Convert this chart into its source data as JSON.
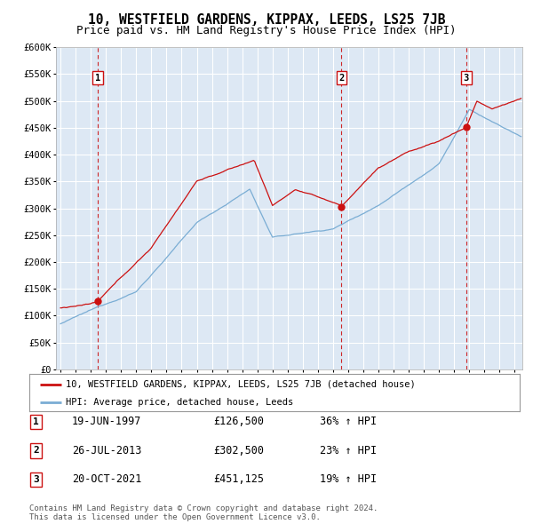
{
  "title": "10, WESTFIELD GARDENS, KIPPAX, LEEDS, LS25 7JB",
  "subtitle": "Price paid vs. HM Land Registry's House Price Index (HPI)",
  "ylim": [
    0,
    600000
  ],
  "yticks": [
    0,
    50000,
    100000,
    150000,
    200000,
    250000,
    300000,
    350000,
    400000,
    450000,
    500000,
    550000,
    600000
  ],
  "ytick_labels": [
    "£0",
    "£50K",
    "£100K",
    "£150K",
    "£200K",
    "£250K",
    "£300K",
    "£350K",
    "£400K",
    "£450K",
    "£500K",
    "£550K",
    "£600K"
  ],
  "xlim_start": 1994.7,
  "xlim_end": 2025.5,
  "background_color": "#dde8f4",
  "grid_color": "#ffffff",
  "sale_color": "#cc1111",
  "hpi_color": "#7aadd4",
  "vline_color": "#cc1111",
  "sales": [
    {
      "year": 1997.47,
      "price": 126500,
      "label": "1",
      "date": "19-JUN-1997",
      "price_str": "£126,500",
      "pct": "36%",
      "direction": "↑"
    },
    {
      "year": 2013.56,
      "price": 302500,
      "label": "2",
      "date": "26-JUL-2013",
      "price_str": "£302,500",
      "pct": "23%",
      "direction": "↑"
    },
    {
      "year": 2021.8,
      "price": 451125,
      "label": "3",
      "date": "20-OCT-2021",
      "price_str": "£451,125",
      "pct": "19%",
      "direction": "↑"
    }
  ],
  "legend_property": "10, WESTFIELD GARDENS, KIPPAX, LEEDS, LS25 7JB (detached house)",
  "legend_hpi": "HPI: Average price, detached house, Leeds",
  "footer": "Contains HM Land Registry data © Crown copyright and database right 2024.\nThis data is licensed under the Open Government Licence v3.0.",
  "title_fontsize": 10.5,
  "subtitle_fontsize": 9,
  "tick_fontsize": 7.5
}
